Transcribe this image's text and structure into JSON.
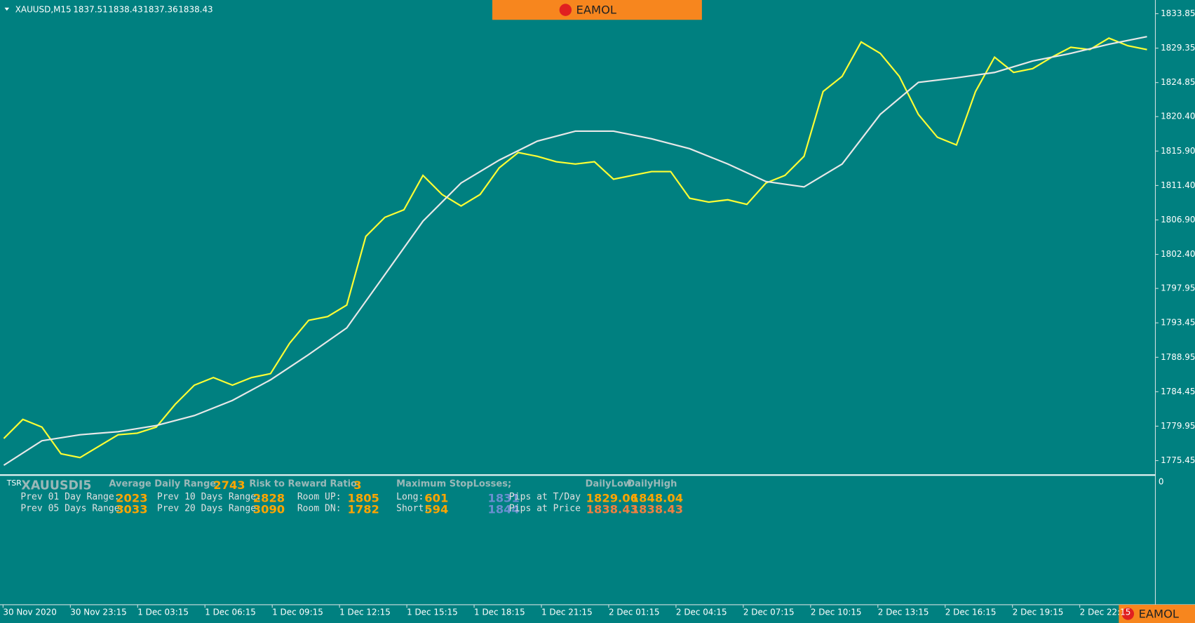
{
  "window": {
    "symbol_label": "XAUUSD,M15",
    "quote": [
      1837.51,
      1838.43,
      1837.36,
      1838.43
    ],
    "brand": "EAMOL"
  },
  "chart_data": {
    "type": "line",
    "ylim": [
      1773.66,
      1835.64
    ],
    "yticks": [
      1833.85,
      1829.35,
      1824.85,
      {
        "value": 1820.4,
        "label": "1820.40"
      },
      {
        "value": 1815.9,
        "label": "1815.90"
      },
      {
        "value": 1811.4,
        "label": "1811.40"
      },
      {
        "value": 1806.9,
        "label": "1806.90"
      },
      {
        "value": 1802.4,
        "label": "1802.40"
      },
      1797.95,
      1793.45,
      1788.95,
      1784.45,
      1779.95,
      1775.45
    ],
    "time_labels": [
      "30 Nov 2020",
      "30 Nov 23:15",
      "1 Dec 03:15",
      "1 Dec 06:15",
      "1 Dec 09:15",
      "1 Dec 12:15",
      "1 Dec 15:15",
      "1 Dec 18:15",
      "1 Dec 21:15",
      "2 Dec 01:15",
      "2 Dec 04:15",
      "2 Dec 07:15",
      "2 Dec 10:15",
      "2 Dec 13:15",
      "2 Dec 16:15",
      "2 Dec 19:15",
      "2 Dec 22:15"
    ],
    "series": [
      {
        "color": "#ffff33",
        "values": [
          1778.34,
          1780.83,
          1779.83,
          1776.34,
          1775.84,
          1777.34,
          1778.83,
          1779.03,
          1779.83,
          1782.82,
          1785.31,
          1786.31,
          1785.31,
          1786.31,
          1786.81,
          1790.79,
          1793.78,
          1794.28,
          1795.78,
          1804.75,
          1807.24,
          1808.23,
          1812.72,
          1810.23,
          1808.73,
          1810.23,
          1813.71,
          1815.71,
          1815.21,
          1814.51,
          1814.21,
          1814.51,
          1812.22,
          1812.72,
          1813.22,
          1813.22,
          1809.73,
          1809.23,
          1809.53,
          1808.93,
          1811.72,
          1812.72,
          1815.21,
          1823.68,
          1825.67,
          1830.16,
          1828.66,
          1825.67,
          1820.69,
          1817.7,
          1816.7,
          1823.68,
          1828.17,
          1826.17,
          1826.67,
          1828.17,
          1829.46,
          1829.16,
          1830.66,
          1829.66,
          1829.16
        ]
      },
      {
        "color": "#e8e8e8",
        "values": [
          1774.85,
          1778.04,
          1778.83,
          1779.23,
          1780.03,
          1781.33,
          1783.32,
          1786.01,
          1789.3,
          1792.79,
          1799.76,
          1806.74,
          1811.72,
          1814.71,
          1817.2,
          1818.5,
          1818.5,
          1817.5,
          1816.21,
          1814.21,
          1811.92,
          1811.22,
          1814.21,
          1820.69,
          1824.88,
          1825.47,
          1826.17,
          1827.67,
          1828.66,
          1829.86,
          1830.86
        ]
      }
    ]
  },
  "indicator": {
    "name": "TSR",
    "symbol": "XAUUSDI5",
    "scale_zero": 0,
    "average_daily_range": {
      "label": "Average Daily Range:",
      "value": 2743
    },
    "risk_reward": {
      "label": "Risk to Reward Ratio:",
      "value": 3
    },
    "max_stop_losses": "Maximum StopLosses;",
    "daily_low_label": "DailyLow",
    "daily_high_label": "DailyHigh",
    "prev_01": {
      "label": "Prev 01 Day Range:",
      "value": 2023
    },
    "prev_05": {
      "label": "Prev 05 Days Range:",
      "value": 3033
    },
    "prev_10": {
      "label": "Prev 10 Days Range:",
      "value": 2828
    },
    "prev_20": {
      "label": "Prev 20 Days Range:",
      "value": 3090
    },
    "room_up": {
      "label": "Room UP:",
      "value": 1805
    },
    "room_dn": {
      "label": "Room DN:",
      "value": 1782
    },
    "long": {
      "label": "Long:",
      "value": 601,
      "pips": 1831
    },
    "short": {
      "label": "Short:",
      "value": 594,
      "pips": 1844
    },
    "pips_today": {
      "label": "Pips at T/Day",
      "low": 1829.06,
      "high": 1848.04
    },
    "pips_price": {
      "label": "Pips at Price",
      "low": 1838.43,
      "high": 1838.43
    }
  }
}
